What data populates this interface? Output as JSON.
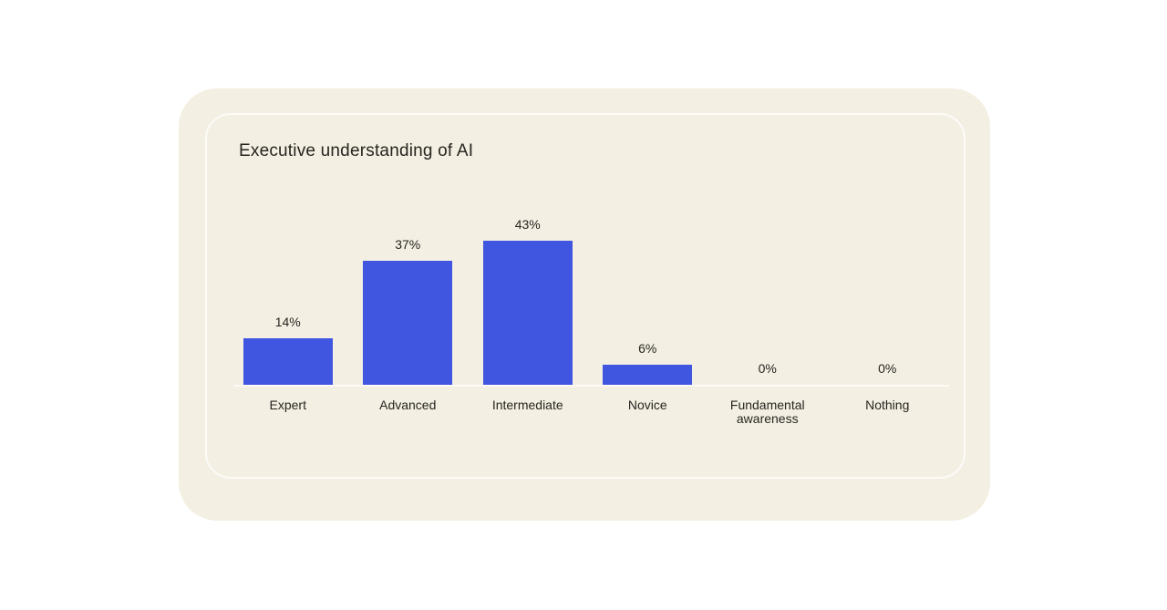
{
  "page": {
    "background_color": "#ffffff",
    "card_background_color": "#f3efe3",
    "panel_border_color": "rgba(255,255,255,0.75)"
  },
  "chart_data": {
    "type": "bar",
    "title": "Executive understanding of AI",
    "categories": [
      "Expert",
      "Advanced",
      "Intermediate",
      "Novice",
      "Fundamental awareness",
      "Nothing"
    ],
    "values": [
      14,
      37,
      43,
      6,
      0,
      0
    ],
    "value_labels": [
      "14%",
      "37%",
      "43%",
      "6%",
      "0%",
      "0%"
    ],
    "unit": "%",
    "ylim": [
      0,
      43
    ],
    "grid": false,
    "legend": false,
    "xlabel": "",
    "ylabel": "",
    "bar_color": "#4056e1",
    "axis_line_color": "#fcfaf3",
    "text_color": "#26251f"
  }
}
